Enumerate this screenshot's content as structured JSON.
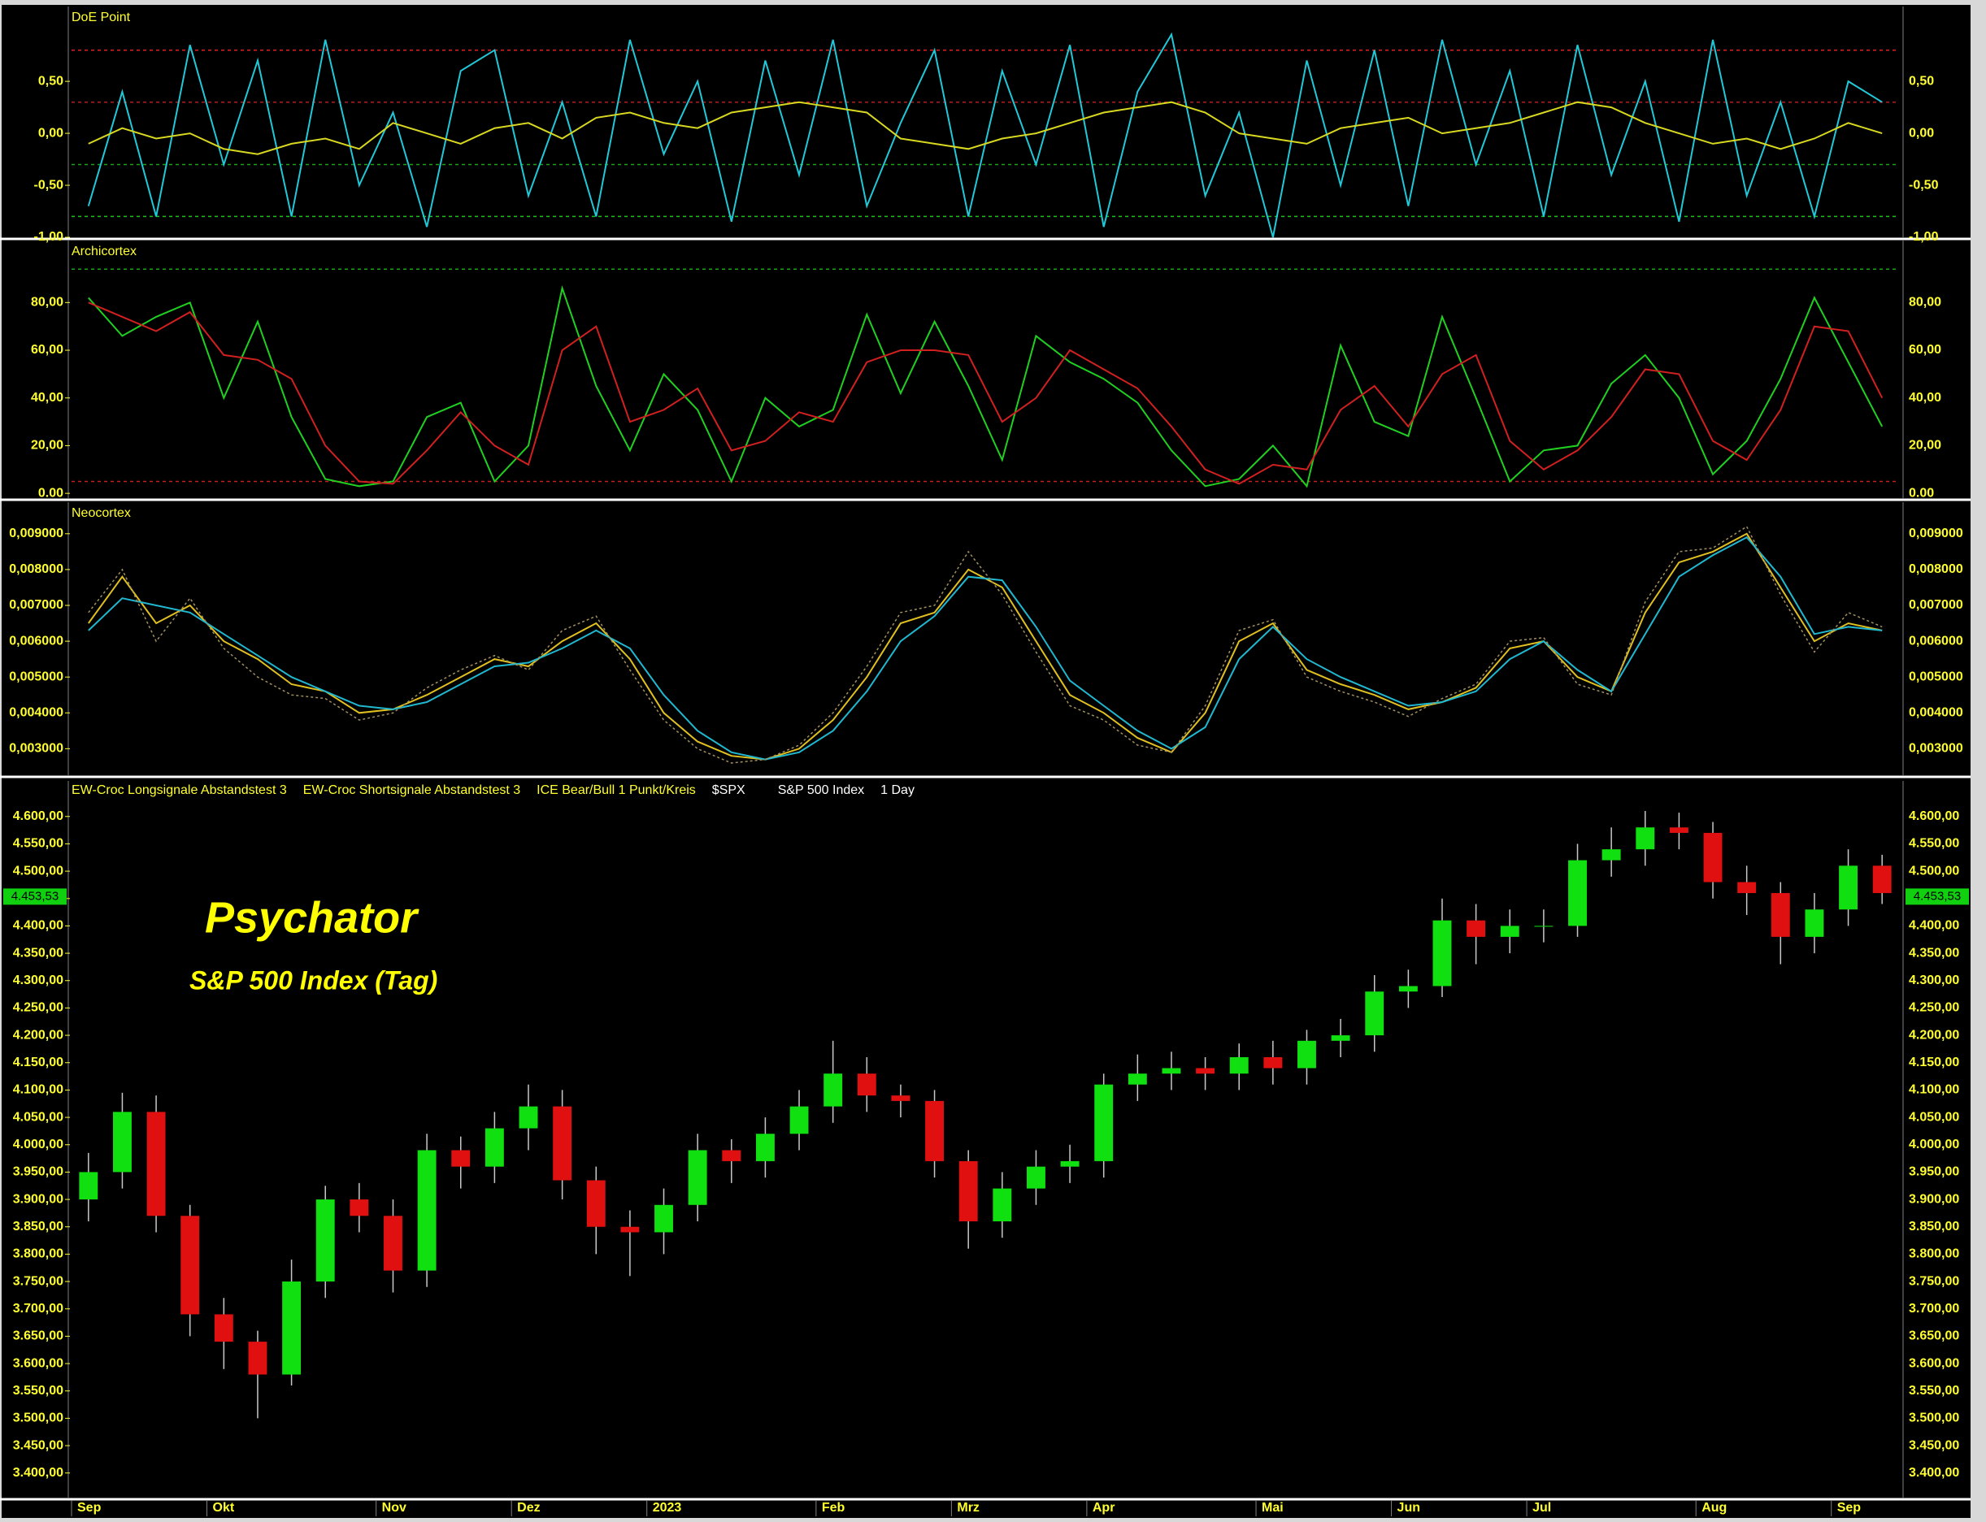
{
  "chart_data": [
    {
      "type": "line",
      "title": "DoE Point",
      "ylim": [
        -1.0,
        1.22
      ],
      "yticks": [
        {
          "value": 0.5,
          "label": "0,50"
        },
        {
          "value": 0,
          "label": "0,00"
        },
        {
          "value": -0.5,
          "label": "-0,50"
        },
        {
          "value": -1,
          "label": "-1,00"
        }
      ],
      "hlines": [
        {
          "value": 0.8,
          "color": "#e02020"
        },
        {
          "value": 0.3,
          "color": "#b02020"
        },
        {
          "value": -0.3,
          "color": "#20a020"
        },
        {
          "value": -0.8,
          "color": "#20c020"
        }
      ],
      "series": [
        {
          "color": "#20c8d8",
          "values": [
            -0.7,
            0.4,
            -0.8,
            0.85,
            -0.3,
            0.7,
            -0.8,
            0.9,
            -0.5,
            0.2,
            -0.9,
            0.6,
            0.8,
            -0.6,
            0.3,
            -0.8,
            0.9,
            -0.2,
            0.5,
            -0.85,
            0.7,
            -0.4,
            0.9,
            -0.7,
            0.1,
            0.8,
            -0.8,
            0.6,
            -0.3,
            0.85,
            -0.9,
            0.4,
            0.95,
            -0.6,
            0.2,
            -1.0,
            0.7,
            -0.5,
            0.8,
            -0.7,
            0.9,
            -0.3,
            0.6,
            -0.8,
            0.85,
            -0.4,
            0.5,
            -0.85,
            0.9,
            -0.6,
            0.3,
            -0.8,
            0.5,
            0.3
          ]
        },
        {
          "color": "#d8d820",
          "values": [
            -0.1,
            0.05,
            -0.05,
            0.0,
            -0.15,
            -0.2,
            -0.1,
            -0.05,
            -0.15,
            0.1,
            0.0,
            -0.1,
            0.05,
            0.1,
            -0.05,
            0.15,
            0.2,
            0.1,
            0.05,
            0.2,
            0.25,
            0.3,
            0.25,
            0.2,
            -0.05,
            -0.1,
            -0.15,
            -0.05,
            0.0,
            0.1,
            0.2,
            0.25,
            0.3,
            0.2,
            0.0,
            -0.05,
            -0.1,
            0.05,
            0.1,
            0.15,
            0.0,
            0.05,
            0.1,
            0.2,
            0.3,
            0.25,
            0.1,
            0.0,
            -0.1,
            -0.05,
            -0.15,
            -0.05,
            0.1,
            0.0
          ]
        }
      ]
    },
    {
      "type": "line",
      "title": "Archicortex",
      "ylim": [
        -2,
        106
      ],
      "yticks": [
        {
          "value": 0,
          "label": "0.00"
        },
        {
          "value": 20,
          "label": "20,00"
        },
        {
          "value": 40,
          "label": "40,00"
        },
        {
          "value": 60,
          "label": "60,00"
        },
        {
          "value": 80,
          "label": "80,00"
        }
      ],
      "hlines": [
        {
          "value": 94,
          "color": "#20a020"
        },
        {
          "value": 5,
          "color": "#c02020"
        }
      ],
      "series": [
        {
          "color": "#20d020",
          "values": [
            82,
            66,
            74,
            80,
            40,
            72,
            32,
            6,
            3,
            5,
            32,
            38,
            5,
            20,
            86,
            45,
            18,
            50,
            35,
            5,
            40,
            28,
            35,
            75,
            42,
            72,
            45,
            14,
            66,
            55,
            48,
            38,
            18,
            3,
            6,
            20,
            3,
            62,
            30,
            24,
            74,
            40,
            5,
            18,
            20,
            46,
            58,
            40,
            8,
            22,
            48,
            82,
            55,
            28
          ]
        },
        {
          "color": "#d02020",
          "values": [
            80,
            74,
            68,
            76,
            58,
            56,
            48,
            20,
            5,
            4,
            18,
            34,
            20,
            12,
            60,
            70,
            30,
            35,
            44,
            18,
            22,
            34,
            30,
            55,
            60,
            60,
            58,
            30,
            40,
            60,
            52,
            44,
            28,
            10,
            4,
            12,
            10,
            35,
            45,
            28,
            50,
            58,
            22,
            10,
            18,
            32,
            52,
            50,
            22,
            14,
            35,
            70,
            68,
            40
          ]
        }
      ]
    },
    {
      "type": "line",
      "title": "Neocortex",
      "ylim": [
        0.00226,
        0.00988
      ],
      "yticks": [
        {
          "value": 0.003,
          "label": "0,003000"
        },
        {
          "value": 0.004,
          "label": "0,004000"
        },
        {
          "value": 0.005,
          "label": "0,005000"
        },
        {
          "value": 0.006,
          "label": "0,006000"
        },
        {
          "value": 0.007,
          "label": "0,007000"
        },
        {
          "value": 0.008,
          "label": "0,008000"
        },
        {
          "value": 0.009,
          "label": "0,009000"
        }
      ],
      "hlines": [],
      "series": [
        {
          "color": "#e0c020",
          "values": [
            0.0065,
            0.0078,
            0.0065,
            0.007,
            0.006,
            0.0055,
            0.0048,
            0.0046,
            0.004,
            0.0041,
            0.0045,
            0.005,
            0.0055,
            0.0053,
            0.006,
            0.0065,
            0.0055,
            0.004,
            0.0032,
            0.0028,
            0.0027,
            0.003,
            0.0038,
            0.005,
            0.0065,
            0.0068,
            0.008,
            0.0075,
            0.006,
            0.0045,
            0.004,
            0.0033,
            0.0029,
            0.004,
            0.006,
            0.0065,
            0.0052,
            0.0048,
            0.0045,
            0.0041,
            0.0043,
            0.0047,
            0.0058,
            0.006,
            0.005,
            0.0046,
            0.0068,
            0.0082,
            0.0085,
            0.009,
            0.0075,
            0.006,
            0.0065,
            0.0063
          ]
        },
        {
          "color": "#20b8d0",
          "values": [
            0.0063,
            0.0072,
            0.007,
            0.0068,
            0.0062,
            0.0056,
            0.005,
            0.0046,
            0.0042,
            0.0041,
            0.0043,
            0.0048,
            0.0053,
            0.0054,
            0.0058,
            0.0063,
            0.0058,
            0.0045,
            0.0035,
            0.0029,
            0.0027,
            0.0029,
            0.0035,
            0.0046,
            0.006,
            0.0067,
            0.0078,
            0.0077,
            0.0064,
            0.0049,
            0.0042,
            0.0035,
            0.003,
            0.0036,
            0.0055,
            0.0064,
            0.0055,
            0.005,
            0.0046,
            0.0042,
            0.0043,
            0.0046,
            0.0055,
            0.006,
            0.0052,
            0.0046,
            0.0062,
            0.0078,
            0.0084,
            0.0089,
            0.0078,
            0.0062,
            0.0064,
            0.0063
          ]
        },
        {
          "color": "#a09060",
          "dotted": true,
          "values": [
            0.0068,
            0.008,
            0.006,
            0.0072,
            0.0058,
            0.005,
            0.0045,
            0.0044,
            0.0038,
            0.004,
            0.0047,
            0.0052,
            0.0056,
            0.0052,
            0.0063,
            0.0067,
            0.0052,
            0.0038,
            0.003,
            0.0026,
            0.0027,
            0.0031,
            0.004,
            0.0053,
            0.0068,
            0.007,
            0.0085,
            0.0073,
            0.0057,
            0.0042,
            0.0038,
            0.0031,
            0.0029,
            0.0042,
            0.0063,
            0.0066,
            0.005,
            0.0046,
            0.0043,
            0.0039,
            0.0044,
            0.0048,
            0.006,
            0.0061,
            0.0048,
            0.0045,
            0.0071,
            0.0085,
            0.0086,
            0.0092,
            0.0073,
            0.0057,
            0.0068,
            0.0064
          ]
        }
      ]
    },
    {
      "type": "candlestick",
      "indicators": [
        "EW-Croc Longsignale Abstandstest 3",
        "EW-Croc Shortsignale Abstandstest 3",
        "ICE Bear/Bull 1 Punkt/Kreis"
      ],
      "symbol": "$SPX",
      "instrument": "S&P 500 Index",
      "interval": "1 Day",
      "annotations": [
        "Psychator",
        "S&P 500 Index (Tag)"
      ],
      "last": {
        "value": 4453.53,
        "label": "4.453,53"
      },
      "up_color": "#10e010",
      "down_color": "#e01010",
      "ylim": [
        3355,
        4665
      ],
      "yticks": [
        {
          "value": 3400,
          "label": "3.400,00"
        },
        {
          "value": 3450,
          "label": "3.450,00"
        },
        {
          "value": 3500,
          "label": "3.500,00"
        },
        {
          "value": 3550,
          "label": "3.550,00"
        },
        {
          "value": 3600,
          "label": "3.600,00"
        },
        {
          "value": 3650,
          "label": "3.650,00"
        },
        {
          "value": 3700,
          "label": "3.700,00"
        },
        {
          "value": 3750,
          "label": "3.750,00"
        },
        {
          "value": 3800,
          "label": "3.800,00"
        },
        {
          "value": 3850,
          "label": "3.850,00"
        },
        {
          "value": 3900,
          "label": "3.900,00"
        },
        {
          "value": 3950,
          "label": "3.950,00"
        },
        {
          "value": 4000,
          "label": "4.000,00"
        },
        {
          "value": 4050,
          "label": "4.050,00"
        },
        {
          "value": 4100,
          "label": "4.100,00"
        },
        {
          "value": 4150,
          "label": "4.150,00"
        },
        {
          "value": 4200,
          "label": "4.200,00"
        },
        {
          "value": 4250,
          "label": "4.250,00"
        },
        {
          "value": 4300,
          "label": "4.300,00"
        },
        {
          "value": 4350,
          "label": "4.350,00"
        },
        {
          "value": 4400,
          "label": "4.400,00"
        },
        {
          "value": 4450,
          "label": "4.450,00"
        },
        {
          "value": 4500,
          "label": "4.500,00"
        },
        {
          "value": 4550,
          "label": "4.550,00"
        },
        {
          "value": 4600,
          "label": "4.600,00"
        }
      ],
      "categories": [
        "Sep",
        null,
        null,
        null,
        "Okt",
        null,
        null,
        null,
        null,
        "Nov",
        null,
        null,
        null,
        "Dez",
        null,
        null,
        null,
        "2023",
        null,
        null,
        null,
        null,
        "Feb",
        null,
        null,
        null,
        "Mrz",
        null,
        null,
        null,
        "Apr",
        null,
        null,
        null,
        null,
        "Mai",
        null,
        null,
        null,
        "Jun",
        null,
        null,
        null,
        "Jul",
        null,
        null,
        null,
        null,
        "Aug",
        null,
        null,
        null,
        "Sep",
        null
      ],
      "open": [
        3900,
        3950,
        4060,
        3870,
        3690,
        3640,
        3580,
        3750,
        3900,
        3870,
        3770,
        3990,
        3960,
        4030,
        4070,
        3935,
        3850,
        3840,
        3890,
        3990,
        3970,
        4020,
        4070,
        4130,
        4090,
        4080,
        3970,
        3860,
        3920,
        3960,
        3970,
        4110,
        4130,
        4140,
        4130,
        4160,
        4140,
        4190,
        4200,
        4280,
        4290,
        4410,
        4380,
        4400,
        4400,
        4520,
        4540,
        4580,
        4570,
        4480,
        4460,
        4380,
        4430,
        4510
      ],
      "high": [
        3985,
        4095,
        4090,
        3890,
        3720,
        3660,
        3790,
        3925,
        3930,
        3900,
        4020,
        4015,
        4060,
        4110,
        4100,
        3960,
        3880,
        3920,
        4020,
        4010,
        4050,
        4100,
        4190,
        4160,
        4110,
        4100,
        3990,
        3950,
        3990,
        4000,
        4130,
        4165,
        4170,
        4160,
        4185,
        4190,
        4210,
        4230,
        4310,
        4320,
        4450,
        4440,
        4430,
        4430,
        4550,
        4580,
        4610,
        4607,
        4590,
        4510,
        4480,
        4460,
        4540,
        4530
      ],
      "low": [
        3860,
        3920,
        3840,
        3650,
        3590,
        3500,
        3560,
        3720,
        3840,
        3730,
        3740,
        3920,
        3930,
        3990,
        3900,
        3800,
        3760,
        3800,
        3860,
        3930,
        3940,
        3990,
        4040,
        4060,
        4050,
        3940,
        3810,
        3830,
        3890,
        3930,
        3940,
        4080,
        4100,
        4100,
        4100,
        4110,
        4110,
        4160,
        4170,
        4250,
        4270,
        4330,
        4350,
        4370,
        4380,
        4490,
        4510,
        4540,
        4450,
        4420,
        4330,
        4350,
        4400,
        4440
      ],
      "close": [
        3950,
        4060,
        3870,
        3690,
        3640,
        3580,
        3750,
        3900,
        3870,
        3770,
        3990,
        3960,
        4030,
        4070,
        3935,
        3850,
        3840,
        3890,
        3990,
        3970,
        4020,
        4070,
        4130,
        4090,
        4080,
        3970,
        3860,
        3920,
        3960,
        3970,
        4110,
        4130,
        4140,
        4130,
        4160,
        4140,
        4190,
        4200,
        4280,
        4290,
        4410,
        4380,
        4400,
        4400,
        4520,
        4540,
        4580,
        4570,
        4480,
        4460,
        4380,
        4430,
        4510,
        4460
      ]
    }
  ]
}
